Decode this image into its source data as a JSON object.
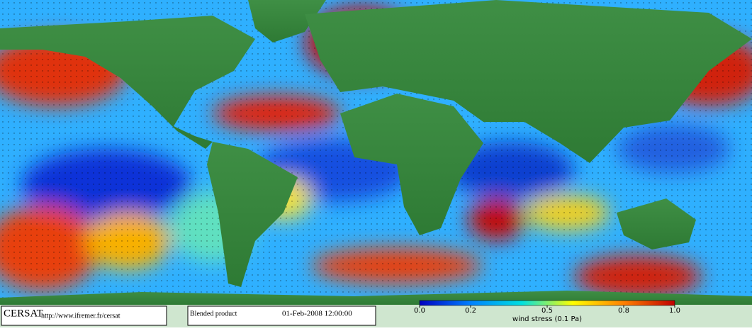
{
  "header": {
    "logo": "CERSAT",
    "url": "http://www.ifremer.fr/cersat"
  },
  "product": {
    "name": "Blended product",
    "datetime": "01-Feb-2008 12:00:00"
  },
  "colorbar": {
    "label": "wind stress (0.1 Pa)",
    "lim": [
      0,
      1
    ],
    "ticks": [
      {
        "value": 0,
        "label": "0.0"
      },
      0.2,
      0.5,
      0.8,
      {
        "value": 1,
        "label": "1.0"
      }
    ],
    "colors": [
      "#0000c0",
      "#0080ff",
      "#00e0e0",
      "#ffff00",
      "#ff8000",
      "#c00000"
    ]
  }
}
